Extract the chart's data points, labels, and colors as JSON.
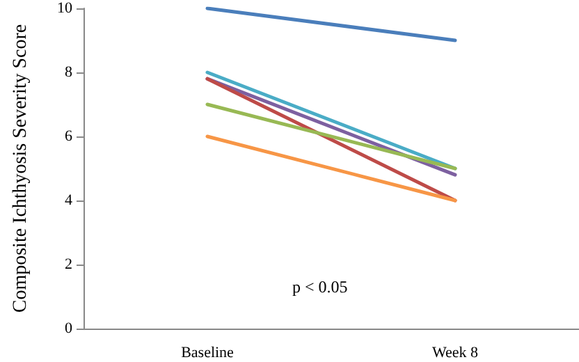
{
  "chart_data": {
    "type": "line",
    "ylabel": "Composite Ichthyosis Severity Score",
    "categories": [
      "Baseline",
      "Week 8"
    ],
    "series": [
      {
        "color": "#4a7ebb",
        "values": [
          10,
          9
        ]
      },
      {
        "color": "#4aacc6",
        "values": [
          8,
          5
        ]
      },
      {
        "color": "#7d60a0",
        "values": [
          7.8,
          4.8
        ]
      },
      {
        "color": "#be4b48",
        "values": [
          7.8,
          4
        ]
      },
      {
        "color": "#98b954",
        "values": [
          7,
          5
        ]
      },
      {
        "color": "#f79646",
        "values": [
          6,
          4
        ]
      }
    ],
    "ylim": [
      0,
      10
    ],
    "yticks": [
      0,
      2,
      4,
      6,
      8,
      10
    ],
    "grid": false,
    "marker": "none",
    "line_style": "solid",
    "annotations": [
      "p < 0.05"
    ]
  }
}
